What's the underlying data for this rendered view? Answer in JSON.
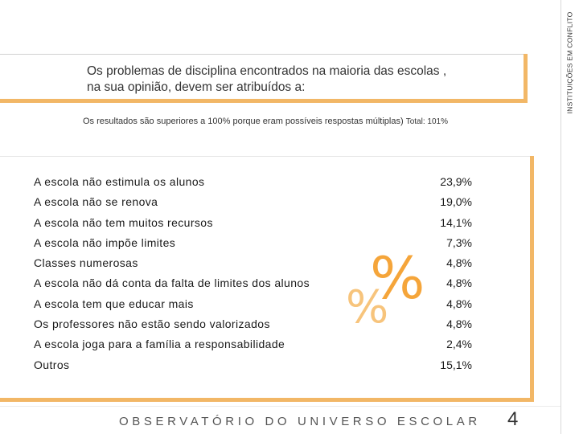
{
  "side_label": "INSTITUIÇÕES EM CONFLITO",
  "question": {
    "line1": "Os problemas de disciplina encontrados na maioria das escolas ,",
    "line2": "na sua opinião, devem ser atribuídos a:"
  },
  "note": {
    "text": "Os resultados são superiores a 100% porque eram possíveis respostas múltiplas)",
    "total": "Total: 101%"
  },
  "rows": [
    {
      "label": "A escola não estimula os alunos",
      "value": "23,9%"
    },
    {
      "label": "A escola não se renova",
      "value": "19,0%"
    },
    {
      "label": "A escola não tem muitos recursos",
      "value": "14,1%"
    },
    {
      "label": "A escola não impõe limites",
      "value": "7,3%"
    },
    {
      "label": "Classes numerosas",
      "value": "4,8%"
    },
    {
      "label": "A escola não dá conta da falta de limites dos alunos",
      "value": "4,8%"
    },
    {
      "label": "A escola tem que educar mais",
      "value": "4,8%"
    },
    {
      "label": "Os professores não estão sendo valorizados",
      "value": "4,8%"
    },
    {
      "label": "A escola joga para a família a responsabilidade",
      "value": "2,4%"
    },
    {
      "label": "Outros",
      "value": "15,1%"
    }
  ],
  "decor": {
    "percent_symbol": "%",
    "icon": "percent-icon"
  },
  "colors": {
    "accent": "#f2b766",
    "percent_dark": "#f5a53a",
    "percent_light": "#f7c47c"
  },
  "footer": {
    "title": "OBSERVATÓRIO DO UNIVERSO ESCOLAR",
    "page_number": "4"
  }
}
